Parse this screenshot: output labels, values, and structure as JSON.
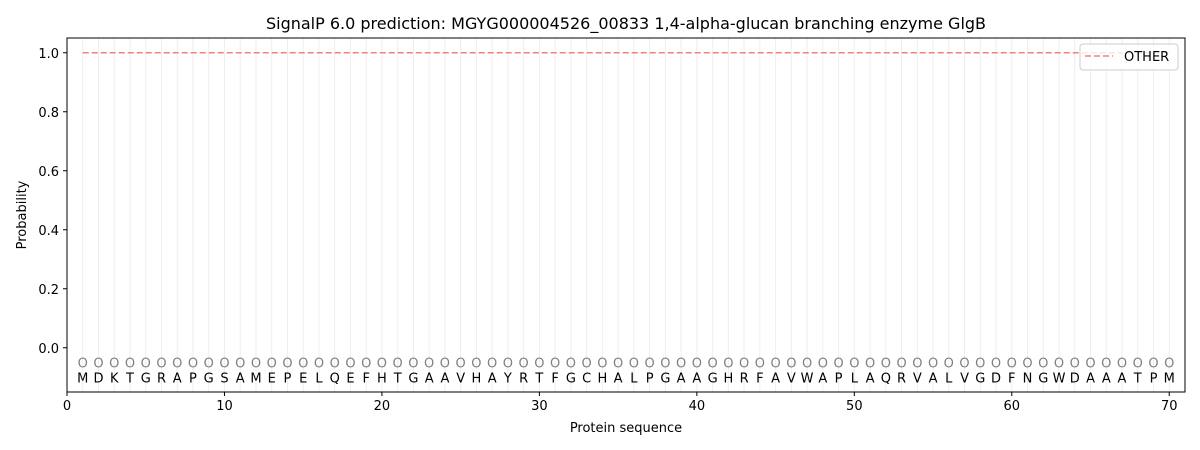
{
  "chart_data": {
    "type": "line",
    "title": "SignalP 6.0 prediction: MGYG000004526_00833 1,4-alpha-glucan branching enzyme GlgB",
    "xlabel": "Protein sequence",
    "ylabel": "Probability",
    "xlim": [
      0,
      71
    ],
    "ylim": [
      -0.15,
      1.05
    ],
    "xticks": [
      0,
      10,
      20,
      30,
      40,
      50,
      60,
      70
    ],
    "yticks": [
      0.0,
      0.2,
      0.4,
      0.6,
      0.8,
      1.0
    ],
    "ytick_labels": [
      "0.0",
      "0.2",
      "0.4",
      "0.6",
      "0.8",
      "1.0"
    ],
    "legend_placement": "top-right",
    "grid": "vertical lines at each residue",
    "sequence": "MDKTGRAPGSAMEPELQEFHTGAAVHAYRTFGCHALPGAAGHRFAVWAPLAQRVALVGDFNGWDAAATPM",
    "residue_label": "O",
    "series": [
      {
        "name": "OTHER",
        "color": "#f08080",
        "style": "dashed",
        "x_start": 1,
        "x_end": 70,
        "value": 1.0
      }
    ]
  }
}
